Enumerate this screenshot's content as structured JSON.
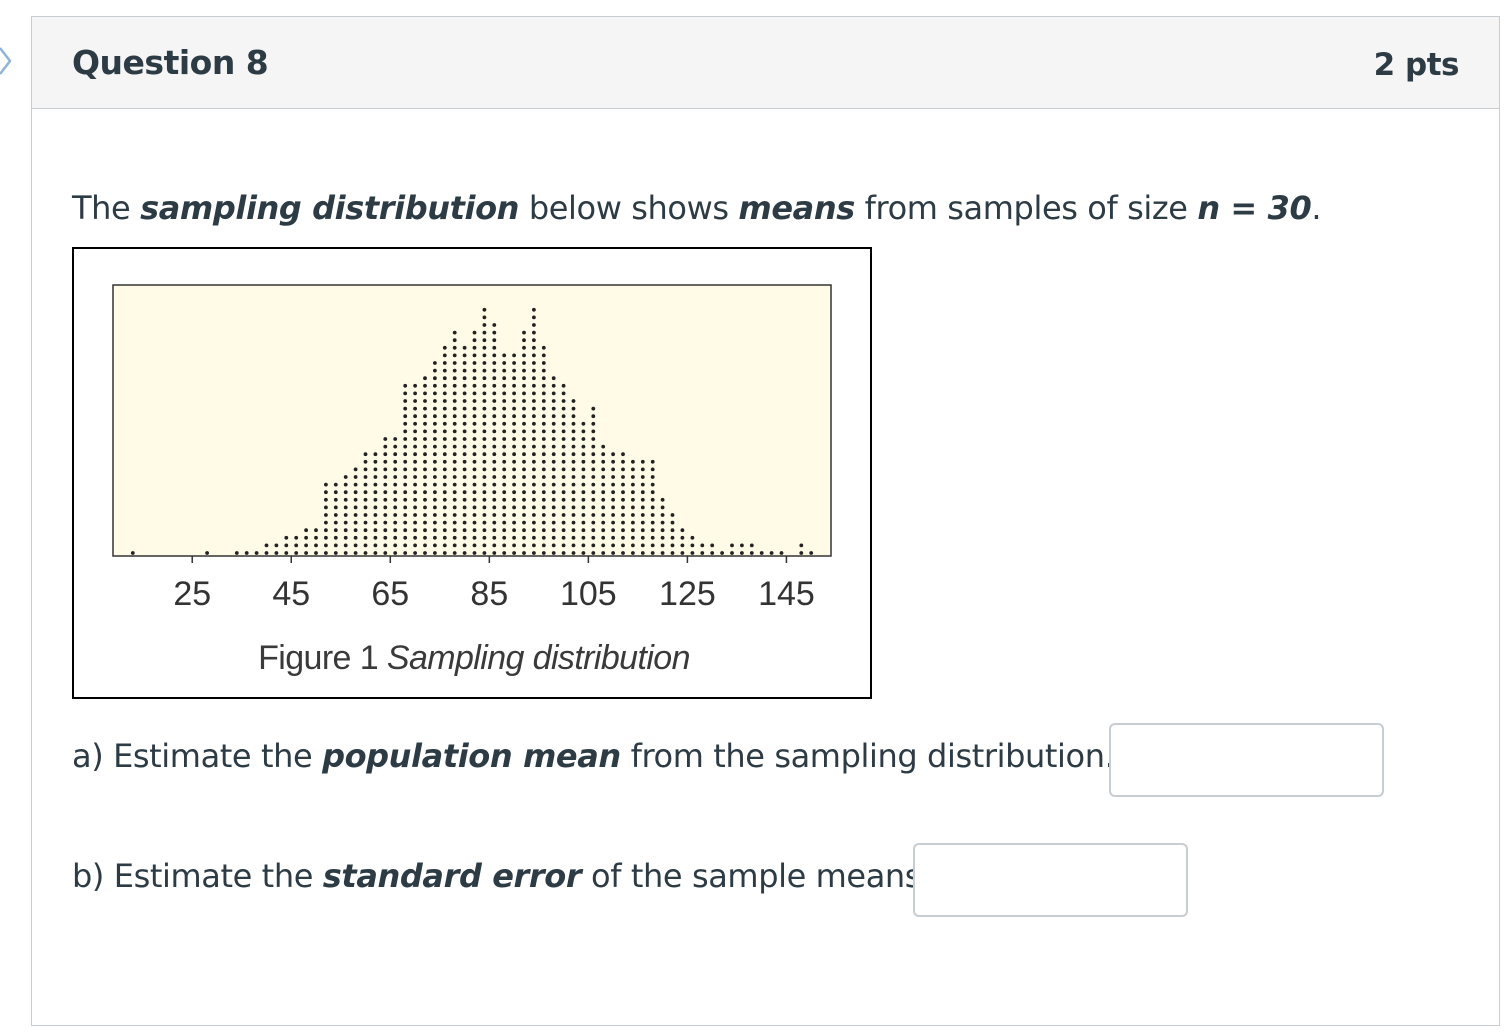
{
  "question": {
    "title": "Question 8",
    "points": "2 pts"
  },
  "prompt": {
    "p1": "The ",
    "b1": "sampling distribution",
    "p2": " below shows ",
    "b2": "means",
    "p3": " from samples of size ",
    "b3": "n = 30",
    "p4": "."
  },
  "figure": {
    "caption_prefix": "Figure 1 ",
    "caption_italic": "Sampling distribution"
  },
  "chart_data": {
    "type": "dotplot",
    "title": "",
    "xlabel": "",
    "ylabel": "",
    "x_ticks": [
      25,
      45,
      65,
      85,
      105,
      125,
      145
    ],
    "xlim": [
      9,
      154
    ],
    "background": "#fffbe6",
    "dot_color": "#222222",
    "columns": [
      {
        "x": 13,
        "count": 1
      },
      {
        "x": 28,
        "count": 1
      },
      {
        "x": 34,
        "count": 1
      },
      {
        "x": 36,
        "count": 1
      },
      {
        "x": 38,
        "count": 1
      },
      {
        "x": 40,
        "count": 2
      },
      {
        "x": 42,
        "count": 2
      },
      {
        "x": 44,
        "count": 3
      },
      {
        "x": 46,
        "count": 3
      },
      {
        "x": 48,
        "count": 4
      },
      {
        "x": 50,
        "count": 4
      },
      {
        "x": 52,
        "count": 10
      },
      {
        "x": 54,
        "count": 10
      },
      {
        "x": 56,
        "count": 11
      },
      {
        "x": 58,
        "count": 12
      },
      {
        "x": 60,
        "count": 14
      },
      {
        "x": 62,
        "count": 14
      },
      {
        "x": 64,
        "count": 16
      },
      {
        "x": 66,
        "count": 16
      },
      {
        "x": 68,
        "count": 23
      },
      {
        "x": 70,
        "count": 23
      },
      {
        "x": 72,
        "count": 24
      },
      {
        "x": 74,
        "count": 26
      },
      {
        "x": 76,
        "count": 28
      },
      {
        "x": 78,
        "count": 30
      },
      {
        "x": 80,
        "count": 28
      },
      {
        "x": 82,
        "count": 30
      },
      {
        "x": 84,
        "count": 33
      },
      {
        "x": 86,
        "count": 31
      },
      {
        "x": 88,
        "count": 27
      },
      {
        "x": 90,
        "count": 27
      },
      {
        "x": 92,
        "count": 30
      },
      {
        "x": 94,
        "count": 33
      },
      {
        "x": 96,
        "count": 28
      },
      {
        "x": 98,
        "count": 24
      },
      {
        "x": 100,
        "count": 23
      },
      {
        "x": 102,
        "count": 21
      },
      {
        "x": 104,
        "count": 18
      },
      {
        "x": 106,
        "count": 20
      },
      {
        "x": 108,
        "count": 15
      },
      {
        "x": 110,
        "count": 14
      },
      {
        "x": 112,
        "count": 14
      },
      {
        "x": 114,
        "count": 13
      },
      {
        "x": 116,
        "count": 13
      },
      {
        "x": 118,
        "count": 13
      },
      {
        "x": 120,
        "count": 8
      },
      {
        "x": 122,
        "count": 6
      },
      {
        "x": 124,
        "count": 4
      },
      {
        "x": 126,
        "count": 3
      },
      {
        "x": 128,
        "count": 2
      },
      {
        "x": 130,
        "count": 2
      },
      {
        "x": 132,
        "count": 1
      },
      {
        "x": 134,
        "count": 2
      },
      {
        "x": 136,
        "count": 2
      },
      {
        "x": 138,
        "count": 2
      },
      {
        "x": 140,
        "count": 1
      },
      {
        "x": 142,
        "count": 1
      },
      {
        "x": 144,
        "count": 1
      },
      {
        "x": 148,
        "count": 2
      },
      {
        "x": 150,
        "count": 1
      }
    ]
  },
  "part_a": {
    "p1": "a) Estimate the ",
    "b1": "population mean",
    "p2": " from the sampling distribution.",
    "value": ""
  },
  "part_b": {
    "p1": "b) Estimate the ",
    "b1": "standard error",
    "p2": " of the sample means.",
    "value": ""
  }
}
